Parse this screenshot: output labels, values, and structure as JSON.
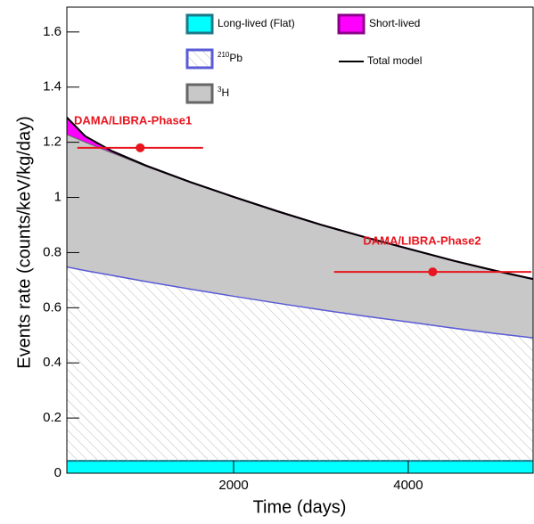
{
  "chart_data": {
    "type": "stacked_area",
    "x_label": "Time (days)",
    "y_label": "Events rate (counts/keV/kg/day)",
    "xlim": [
      90,
      5430
    ],
    "ylim": [
      0,
      1.69
    ],
    "xticks": [
      2000,
      4000
    ],
    "yticks": [
      0,
      0.2,
      0.4,
      0.6,
      0.8,
      1,
      1.2,
      1.4,
      1.6
    ],
    "x": [
      90,
      300,
      600,
      1000,
      1500,
      2000,
      2500,
      3000,
      3500,
      4000,
      4500,
      5000,
      5430
    ],
    "series": [
      {
        "name": "Long-lived (Flat)",
        "color": "#00ffff",
        "edge": "#1a7a8a",
        "values": [
          0.045,
          0.045,
          0.045,
          0.045,
          0.045,
          0.045,
          0.045,
          0.045,
          0.045,
          0.045,
          0.045,
          0.045,
          0.045
        ]
      },
      {
        "name": "Pb",
        "sup": "210",
        "color": "#5a5ad6",
        "hatch": true,
        "values": [
          0.705,
          0.692,
          0.675,
          0.652,
          0.625,
          0.599,
          0.574,
          0.55,
          0.527,
          0.506,
          0.484,
          0.464,
          0.448
        ]
      },
      {
        "name": "H",
        "sup": "3",
        "color": "#c8c8c8",
        "edge": "#666666",
        "values": [
          0.48,
          0.465,
          0.444,
          0.417,
          0.386,
          0.358,
          0.331,
          0.306,
          0.284,
          0.263,
          0.243,
          0.225,
          0.211
        ]
      },
      {
        "name": "Short-lived",
        "color": "#ff00ff",
        "edge": "#8b008b",
        "values": [
          0.06,
          0.02,
          0.005,
          0.001,
          0,
          0,
          0,
          0,
          0,
          0,
          0,
          0,
          0
        ]
      }
    ],
    "total_label": "Total model",
    "total_color": "#000000",
    "points": [
      {
        "label": "DAMA/LIBRA-Phase1",
        "x": 930,
        "xerr": 720,
        "y": 1.18
      },
      {
        "label": "DAMA/LIBRA-Phase2",
        "x": 4280,
        "xerr": 1130,
        "y": 0.73
      }
    ],
    "point_color": "#e8141e"
  }
}
